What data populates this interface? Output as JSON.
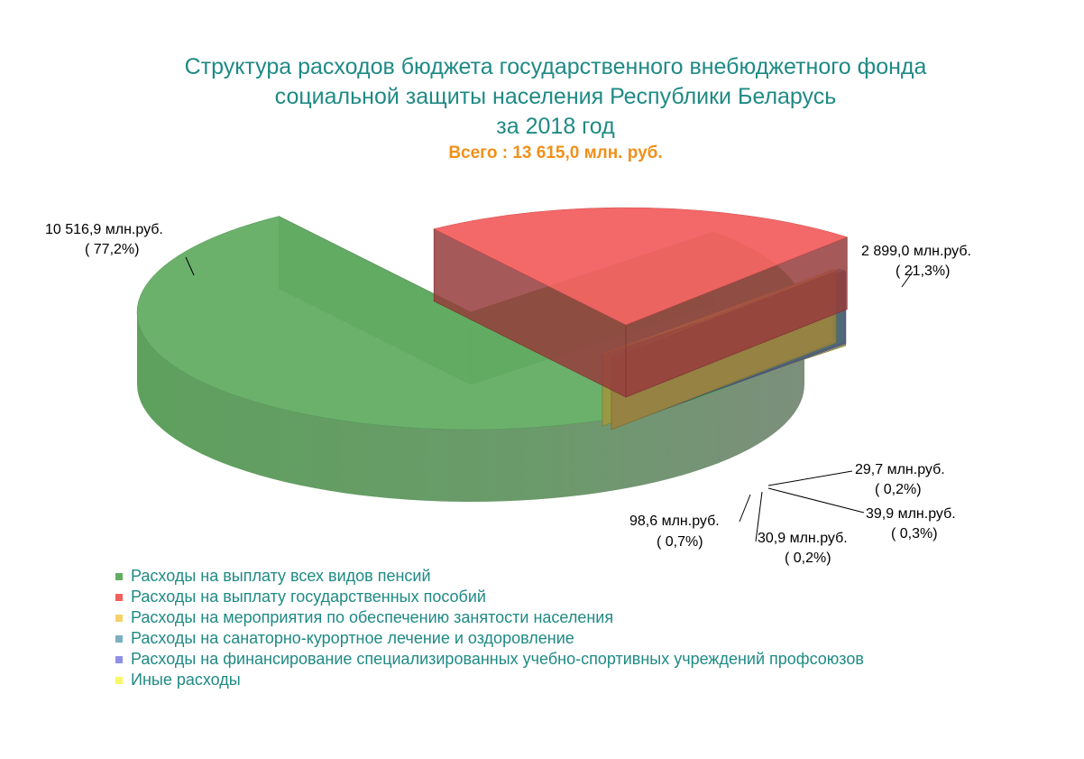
{
  "chart_data": {
    "type": "pie",
    "title_lines": [
      "Структура расходов бюджета государственного внебюджетного фонда",
      "социальной защиты населения Республики Беларусь",
      "за 2018 год"
    ],
    "subtitle": "Всего : 13 615,0 млн. руб.",
    "slices": [
      {
        "name": "Расходы на выплату всех видов пенсий",
        "value": 10516.9,
        "percent": 77.2,
        "color": "#63ad63",
        "value_label": "10 516,9 млн.руб.",
        "percent_label": "( 77,2%)"
      },
      {
        "name": "Расходы на выплату государственных пособий",
        "value": 2899.0,
        "percent": 21.3,
        "color": "#f26060",
        "value_label": "2 899,0  млн.руб.",
        "percent_label": "( 21,3%)"
      },
      {
        "name": "Расходы на мероприятия по обеспечению занятости населения",
        "value": 29.7,
        "percent": 0.2,
        "color": "#f5d36a",
        "value_label": "29,7 млн.руб.",
        "percent_label": "( 0,2%)"
      },
      {
        "name": "Расходы на санаторно-курортное лечение и оздоровление",
        "value": 39.9,
        "percent": 0.3,
        "color": "#7bb0c0",
        "value_label": "39,9 млн.руб.",
        "percent_label": "( 0,3%)"
      },
      {
        "name": "Расходы на финансирование специализированных учебно-спортивных учреждений профсоюзов",
        "value": 30.9,
        "percent": 0.2,
        "color": "#8f8fe8",
        "value_label": "30,9 млн.руб.",
        "percent_label": "( 0,2%)"
      },
      {
        "name": "Иные расходы",
        "value": 98.6,
        "percent": 0.7,
        "color": "#f7f76a",
        "value_label": "98,6 млн.руб.",
        "percent_label": "( 0,7%)"
      }
    ],
    "legend_position": "bottom-left"
  }
}
